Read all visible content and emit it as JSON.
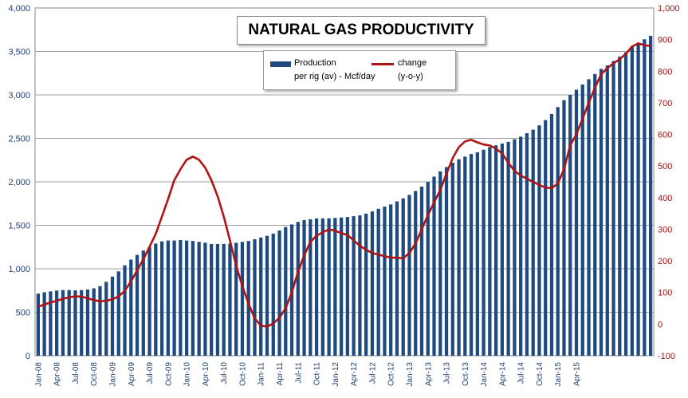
{
  "chart_data": {
    "type": "bar+line",
    "title": "NATURAL GAS PRODUCTIVITY",
    "legend": {
      "bar_line1": "Production",
      "bar_line2": "per rig  (av) - Mcf/day",
      "line_line1": "change",
      "line_line2": "(y-o-y)"
    },
    "left_axis": {
      "min": 0,
      "max": 4000,
      "ticks": [
        "0",
        "500",
        "1,000",
        "1,500",
        "2,000",
        "2,500",
        "3,000",
        "3,500",
        "4,000"
      ]
    },
    "right_axis": {
      "min": -100,
      "max": 1000,
      "ticks": [
        "-100",
        "0",
        "100",
        "200",
        "300",
        "400",
        "500",
        "600",
        "700",
        "800",
        "900",
        "1,000"
      ]
    },
    "x_labels": [
      "Jan-08",
      "Apr-08",
      "Jul-08",
      "Oct-08",
      "Jan-09",
      "Apr-09",
      "Jul-09",
      "Oct-09",
      "Jan-10",
      "Apr-10",
      "Jul-10",
      "Oct-10",
      "Jan-11",
      "Apr-11",
      "Jul-11",
      "Oct-11",
      "Jan-12",
      "Apr-12",
      "Jul-12",
      "Oct-12",
      "Jan-13",
      "Apr-13",
      "Jul-13",
      "Oct-13",
      "Jan-14",
      "Apr-14",
      "Jul-14",
      "Oct-14",
      "Jan-15",
      "Apr-15"
    ],
    "grid": "horizontal",
    "colors": {
      "bars": "#1f4a80",
      "line": "#b01313",
      "grid": "#a0a0a0"
    },
    "series": [
      {
        "name": "Production per rig (av) - Mcf/day",
        "axis": "left",
        "kind": "bar",
        "values": [
          715,
          730,
          740,
          750,
          755,
          755,
          752,
          755,
          762,
          775,
          800,
          850,
          910,
          970,
          1040,
          1105,
          1160,
          1210,
          1250,
          1290,
          1315,
          1325,
          1325,
          1330,
          1325,
          1320,
          1310,
          1300,
          1285,
          1285,
          1285,
          1290,
          1300,
          1310,
          1320,
          1340,
          1360,
          1380,
          1405,
          1440,
          1480,
          1510,
          1540,
          1560,
          1570,
          1580,
          1580,
          1580,
          1585,
          1590,
          1595,
          1605,
          1615,
          1635,
          1660,
          1690,
          1715,
          1740,
          1775,
          1810,
          1850,
          1895,
          1945,
          2000,
          2060,
          2120,
          2170,
          2220,
          2260,
          2290,
          2320,
          2340,
          2370,
          2400,
          2420,
          2440,
          2460,
          2490,
          2520,
          2560,
          2600,
          2650,
          2710,
          2780,
          2860,
          2940,
          3000,
          3060,
          3120,
          3180,
          3240,
          3300,
          3340,
          3390,
          3440,
          3490,
          3550,
          3600,
          3640,
          3680
        ]
      },
      {
        "name": "change (y-o-y)",
        "axis": "right",
        "kind": "line",
        "values": [
          55,
          62,
          68,
          74,
          80,
          85,
          88,
          87,
          82,
          76,
          72,
          74,
          78,
          88,
          105,
          135,
          170,
          205,
          245,
          285,
          340,
          395,
          455,
          490,
          520,
          530,
          520,
          495,
          455,
          405,
          340,
          265,
          185,
          120,
          65,
          18,
          -5,
          -8,
          2,
          20,
          50,
          100,
          165,
          218,
          260,
          280,
          290,
          300,
          295,
          288,
          282,
          265,
          248,
          235,
          225,
          220,
          215,
          210,
          210,
          208,
          225,
          255,
          300,
          345,
          385,
          425,
          475,
          525,
          560,
          578,
          583,
          575,
          568,
          565,
          555,
          540,
          510,
          485,
          470,
          460,
          450,
          440,
          432,
          430,
          445,
          490,
          565,
          600,
          650,
          700,
          748,
          790,
          810,
          825,
          838,
          855,
          878,
          888,
          882,
          880
        ]
      }
    ]
  }
}
